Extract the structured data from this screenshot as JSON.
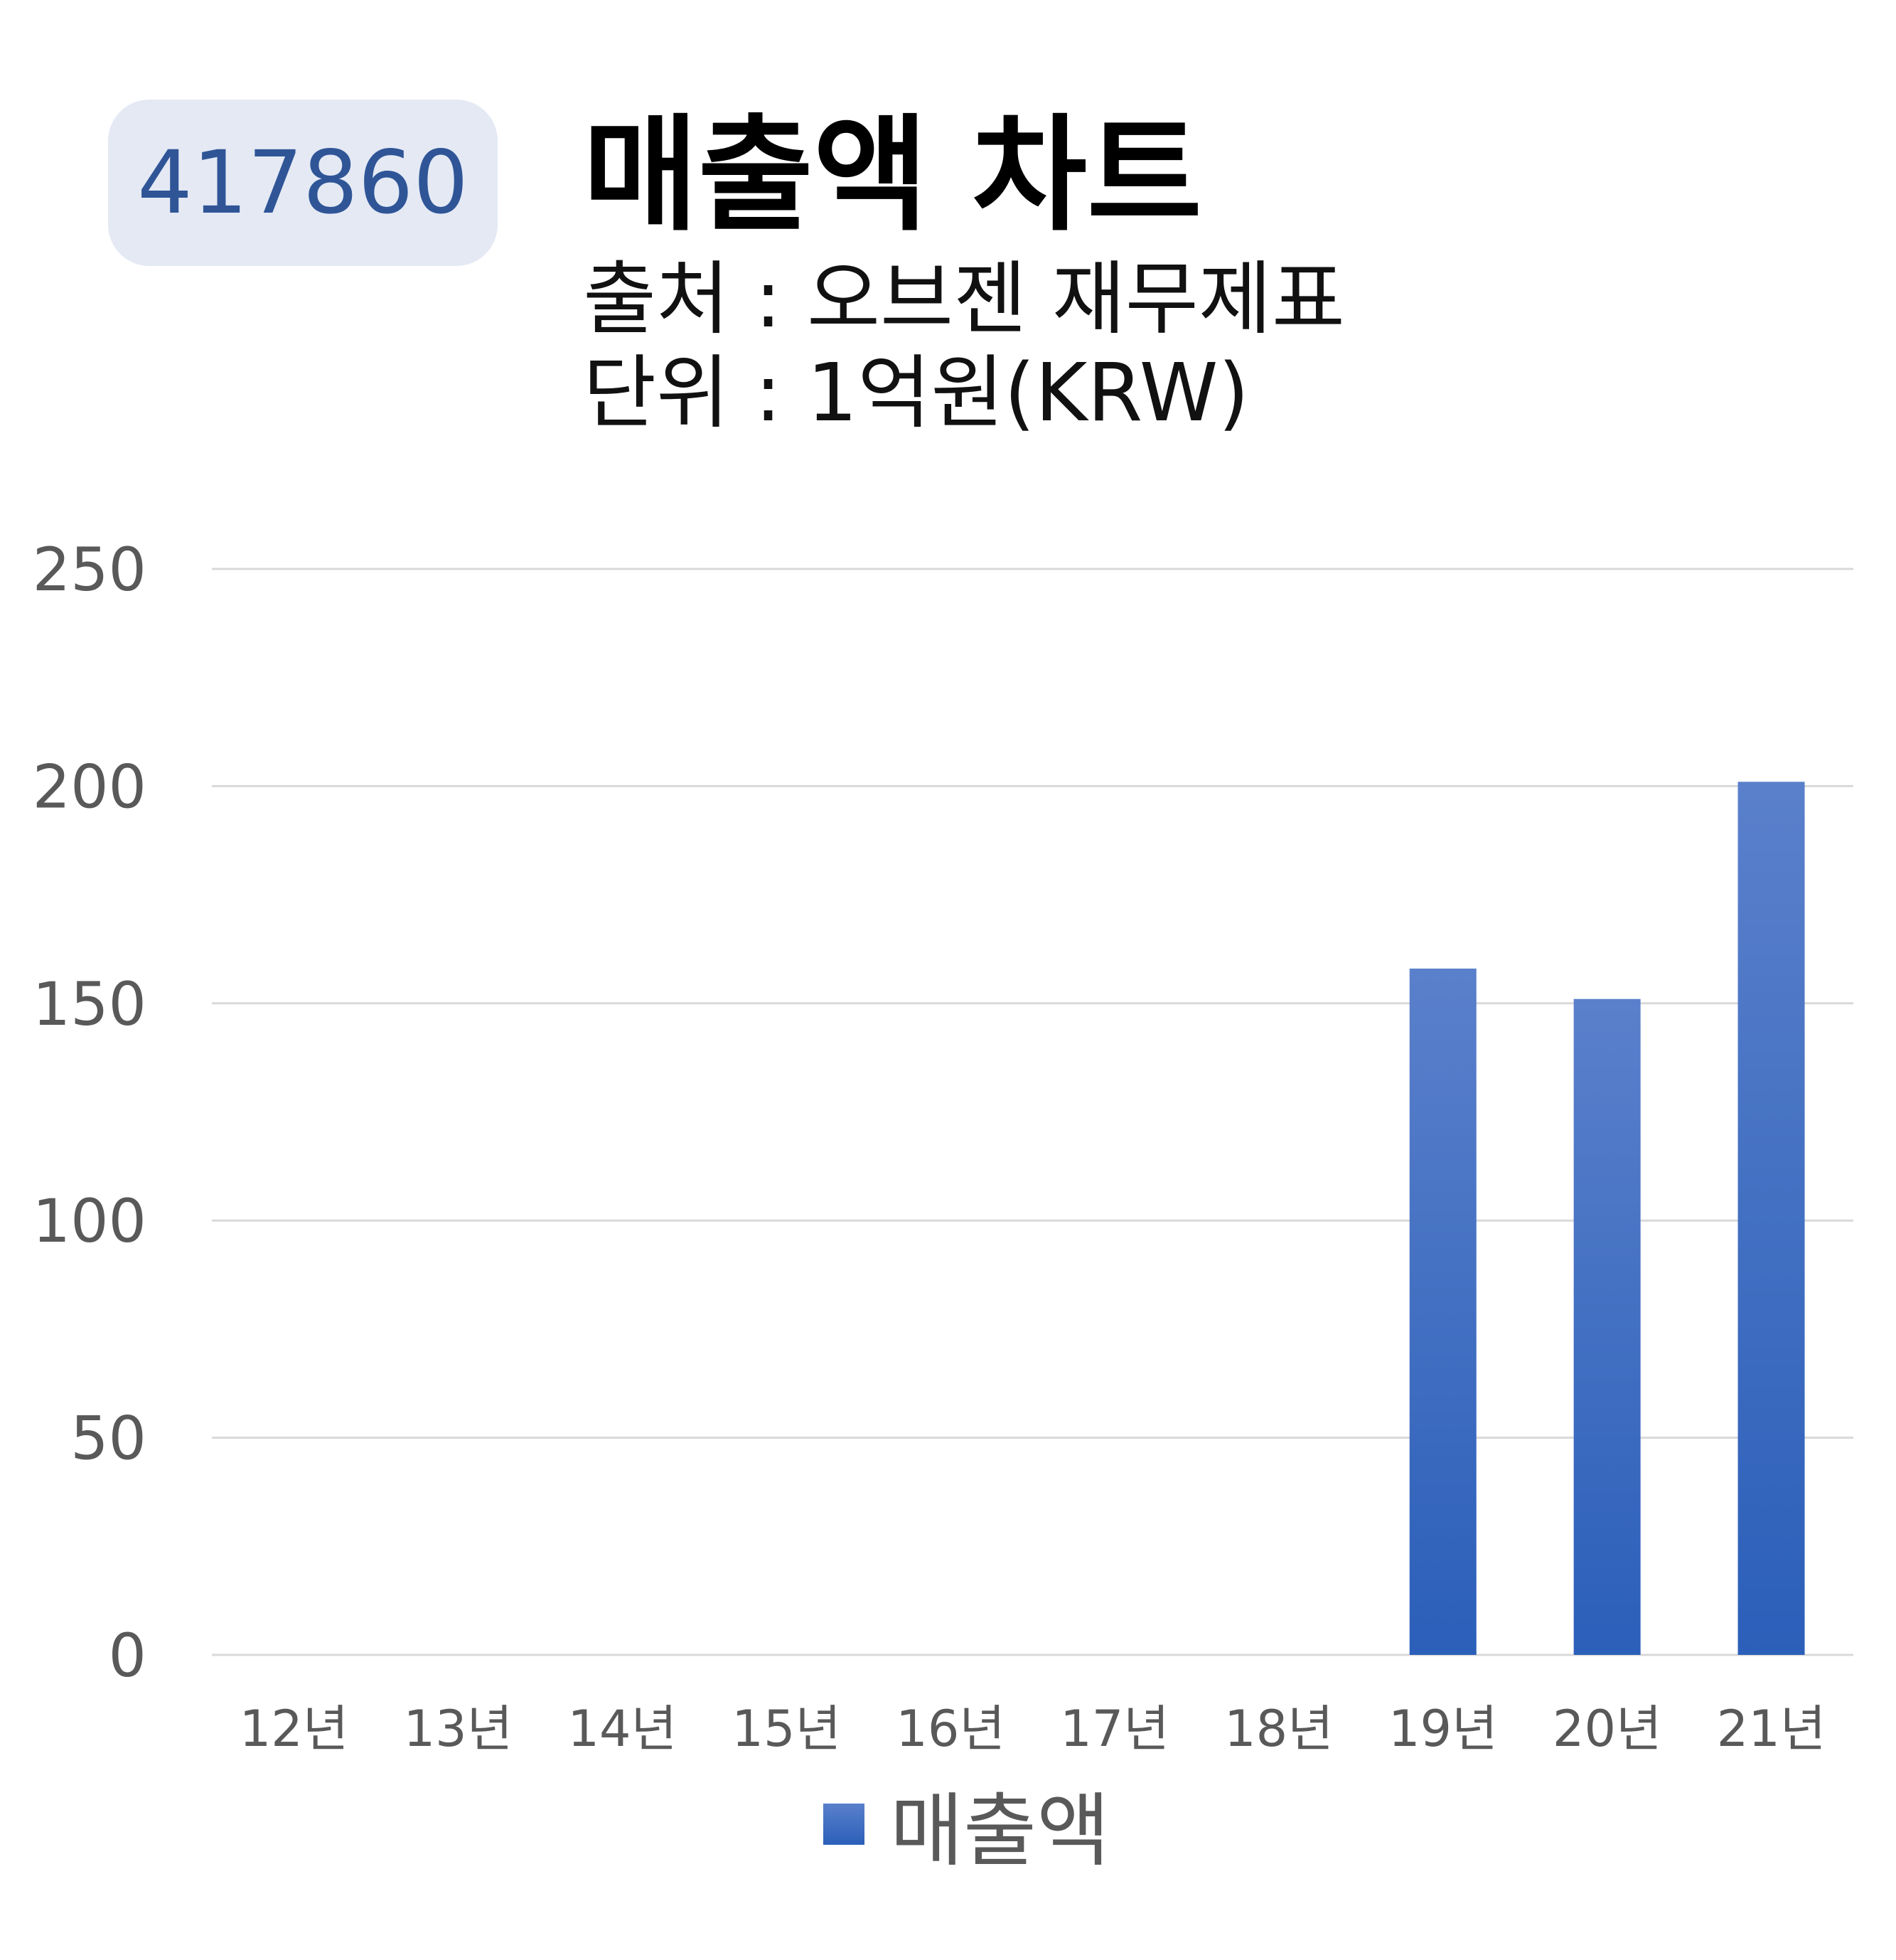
{
  "badge": {
    "code": "417860"
  },
  "header": {
    "title": "매출액 차트",
    "source": "출처 : 오브젠 재무제표",
    "unit": "단위 : 1억원(KRW)"
  },
  "chart_data": {
    "type": "bar",
    "categories": [
      "12년",
      "13년",
      "14년",
      "15년",
      "16년",
      "17년",
      "18년",
      "19년",
      "20년",
      "21년"
    ],
    "series": [
      {
        "name": "매출액",
        "values": [
          null,
          null,
          null,
          null,
          null,
          null,
          null,
          158,
          151,
          201
        ],
        "color": "#4472c4"
      }
    ],
    "ylim": [
      0,
      250
    ],
    "yticks": [
      0,
      50,
      100,
      150,
      200,
      250
    ],
    "grid": true,
    "legend": "bottom"
  },
  "legend": {
    "label": "매출액"
  }
}
